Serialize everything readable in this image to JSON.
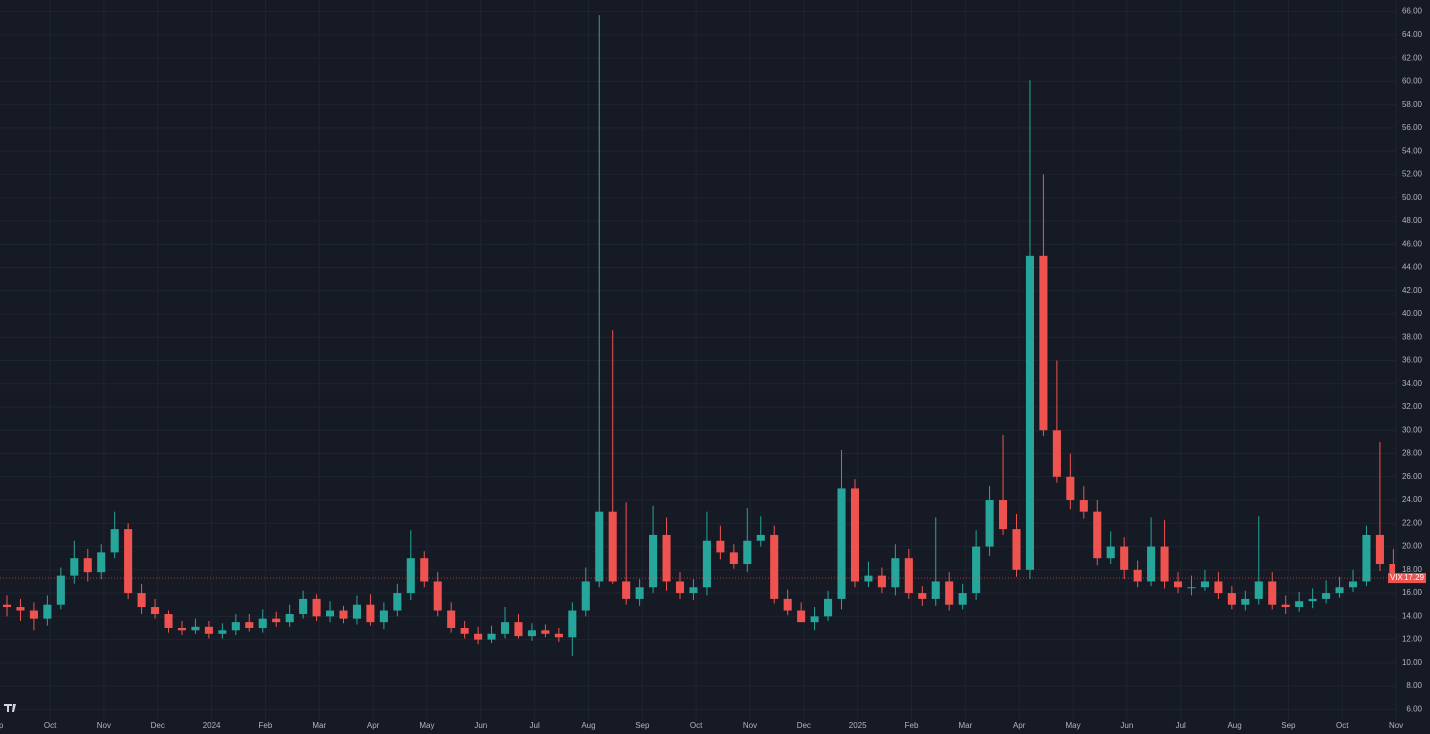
{
  "chart_data": {
    "type": "candlestick",
    "tag": "VIX",
    "last_value": {
      "value": 17.29,
      "label": "17.29"
    },
    "up_color": "#26a69a",
    "down_color": "#ef5350",
    "grid": true,
    "xlim": [
      0.07,
      25.98
    ],
    "xticks": [
      {
        "value": 0,
        "label": "Sep"
      },
      {
        "value": 1,
        "label": "Oct"
      },
      {
        "value": 2,
        "label": "Nov"
      },
      {
        "value": 3,
        "label": "Dec"
      },
      {
        "value": 4,
        "label": "2024"
      },
      {
        "value": 5,
        "label": "Feb"
      },
      {
        "value": 6,
        "label": "Mar"
      },
      {
        "value": 7,
        "label": "Apr"
      },
      {
        "value": 8,
        "label": "May"
      },
      {
        "value": 9,
        "label": "Jun"
      },
      {
        "value": 10,
        "label": "Jul"
      },
      {
        "value": 11,
        "label": "Aug"
      },
      {
        "value": 12,
        "label": "Sep"
      },
      {
        "value": 13,
        "label": "Oct"
      },
      {
        "value": 14,
        "label": "Nov"
      },
      {
        "value": 15,
        "label": "Dec"
      },
      {
        "value": 16,
        "label": "2025"
      },
      {
        "value": 17,
        "label": "Feb"
      },
      {
        "value": 18,
        "label": "Mar"
      },
      {
        "value": 19,
        "label": "Apr"
      },
      {
        "value": 20,
        "label": "May"
      },
      {
        "value": 21,
        "label": "Jun"
      },
      {
        "value": 22,
        "label": "Jul"
      },
      {
        "value": 23,
        "label": "Aug"
      },
      {
        "value": 24,
        "label": "Sep"
      },
      {
        "value": 25,
        "label": "Oct"
      },
      {
        "value": 26,
        "label": "Nov"
      }
    ],
    "ylim": [
      5,
      67
    ],
    "yticks": [
      {
        "value": 6,
        "label": "6.00"
      },
      {
        "value": 8,
        "label": "8.00"
      },
      {
        "value": 10,
        "label": "10.00"
      },
      {
        "value": 12,
        "label": "12.00"
      },
      {
        "value": 14,
        "label": "14.00"
      },
      {
        "value": 16,
        "label": "16.00"
      },
      {
        "value": 18,
        "label": "18.00"
      },
      {
        "value": 20,
        "label": "20.00"
      },
      {
        "value": 22,
        "label": "22.00"
      },
      {
        "value": 24,
        "label": "24.00"
      },
      {
        "value": 26,
        "label": "26.00"
      },
      {
        "value": 28,
        "label": "28.00"
      },
      {
        "value": 30,
        "label": "30.00"
      },
      {
        "value": 32,
        "label": "32.00"
      },
      {
        "value": 34,
        "label": "34.00"
      },
      {
        "value": 36,
        "label": "36.00"
      },
      {
        "value": 38,
        "label": "38.00"
      },
      {
        "value": 40,
        "label": "40.00"
      },
      {
        "value": 42,
        "label": "42.00"
      },
      {
        "value": 44,
        "label": "44.00"
      },
      {
        "value": 46,
        "label": "46.00"
      },
      {
        "value": 48,
        "label": "48.00"
      },
      {
        "value": 50,
        "label": "50.00"
      },
      {
        "value": 52,
        "label": "52.00"
      },
      {
        "value": 54,
        "label": "54.00"
      },
      {
        "value": 56,
        "label": "56.00"
      },
      {
        "value": 58,
        "label": "58.00"
      },
      {
        "value": 60,
        "label": "60.00"
      },
      {
        "value": 62,
        "label": "62.00"
      },
      {
        "value": 64,
        "label": "64.00"
      },
      {
        "value": 66,
        "label": "66.00"
      }
    ],
    "x": [
      0.2,
      0.45,
      0.7,
      0.95,
      1.2,
      1.45,
      1.7,
      1.95,
      2.2,
      2.45,
      2.7,
      2.95,
      3.2,
      3.45,
      3.7,
      3.95,
      4.2,
      4.45,
      4.7,
      4.95,
      5.2,
      5.45,
      5.7,
      5.95,
      6.2,
      6.45,
      6.7,
      6.95,
      7.2,
      7.45,
      7.7,
      7.95,
      8.2,
      8.45,
      8.7,
      8.95,
      9.2,
      9.45,
      9.7,
      9.95,
      10.2,
      10.45,
      10.7,
      10.95,
      11.2,
      11.45,
      11.7,
      11.95,
      12.2,
      12.45,
      12.7,
      12.95,
      13.2,
      13.45,
      13.7,
      13.95,
      14.2,
      14.45,
      14.7,
      14.95,
      15.2,
      15.45,
      15.7,
      15.95,
      16.2,
      16.45,
      16.7,
      16.95,
      17.2,
      17.45,
      17.7,
      17.95,
      18.2,
      18.45,
      18.7,
      18.95,
      19.2,
      19.45,
      19.7,
      19.95,
      20.2,
      20.45,
      20.7,
      20.95,
      21.2,
      21.45,
      21.7,
      21.95,
      22.2,
      22.45,
      22.7,
      22.95,
      23.2,
      23.45,
      23.7,
      23.95,
      24.2,
      24.45,
      24.7,
      24.95,
      25.2,
      25.45,
      25.7,
      25.95
    ],
    "open": [
      15,
      14.8,
      14.5,
      13.8,
      15,
      17.5,
      19,
      17.8,
      19.5,
      21.5,
      16,
      14.8,
      14.2,
      13,
      12.8,
      13.1,
      12.5,
      12.8,
      13.5,
      13,
      13.8,
      13.5,
      14.2,
      15.5,
      14,
      14.5,
      13.8,
      15,
      13.5,
      14.5,
      16,
      19,
      17,
      14.5,
      13,
      12.5,
      12,
      12.5,
      13.5,
      12.3,
      12.8,
      12.5,
      12.2,
      14.5,
      17,
      23,
      17,
      15.5,
      16.5,
      21,
      17,
      16,
      16.5,
      20.5,
      19.5,
      18.5,
      20.5,
      21,
      15.5,
      14.5,
      13.5,
      14,
      15.5,
      25,
      17,
      17.5,
      16.5,
      19,
      16,
      15.5,
      17,
      15,
      16,
      20,
      24,
      21.5,
      18,
      45,
      30,
      26,
      24,
      23,
      19,
      20,
      18,
      17,
      20,
      17,
      16.5,
      16.5,
      17,
      16,
      15,
      15.5,
      17,
      15,
      14.8,
      15.3,
      15.5,
      16,
      16.5,
      17,
      21,
      18.5
    ],
    "high": [
      15.8,
      15.5,
      15.2,
      15.8,
      18.2,
      20.5,
      19.8,
      20.2,
      23,
      22,
      16.8,
      15.5,
      14.5,
      13.6,
      13.8,
      13.6,
      13.4,
      14.2,
      14.2,
      14.6,
      14.4,
      15,
      16.2,
      15.9,
      15.3,
      14.9,
      15.8,
      15.9,
      15.2,
      16.8,
      21.4,
      19.6,
      17.8,
      15.2,
      13.6,
      13.1,
      13.2,
      14.8,
      14.2,
      13.4,
      13.3,
      13,
      15.2,
      18.2,
      65.7,
      38.6,
      23.8,
      17.2,
      23.5,
      22.5,
      17.8,
      17.2,
      23,
      21.8,
      20.2,
      23.3,
      22.6,
      21.8,
      16.3,
      15.2,
      14.8,
      16.2,
      28.3,
      25.8,
      18.7,
      18.2,
      20.2,
      19.8,
      16.6,
      22.5,
      17.8,
      16.8,
      21.4,
      25.2,
      29.6,
      22.8,
      60.1,
      52,
      36,
      28,
      25.2,
      24,
      21.3,
      20.8,
      18.8,
      22.5,
      22.3,
      17.8,
      17.5,
      18,
      17.8,
      16.6,
      16.2,
      22.6,
      17.8,
      15.8,
      16.1,
      16.4,
      17.1,
      17.4,
      18,
      21.8,
      28.99,
      19.8
    ],
    "low": [
      14,
      13.6,
      12.8,
      13.2,
      14.6,
      16.8,
      17,
      17.2,
      19,
      15.5,
      14.2,
      13.8,
      12.6,
      12.4,
      12.5,
      12.1,
      12.1,
      12.4,
      12.7,
      12.6,
      13.1,
      13.1,
      13.8,
      13.6,
      13.5,
      13.4,
      13.3,
      13.2,
      12.9,
      14,
      15.4,
      16.5,
      14,
      12.6,
      12.1,
      11.6,
      11.7,
      12.1,
      12.1,
      11.9,
      12.2,
      11.8,
      10.6,
      14,
      16.5,
      16.8,
      15,
      14.9,
      16,
      16.2,
      15.5,
      15.4,
      15.8,
      18.9,
      18.1,
      17.8,
      20,
      15.1,
      14.1,
      13.5,
      12.8,
      13.6,
      14.6,
      16.5,
      16.5,
      16,
      15.8,
      15.5,
      14.9,
      14.9,
      14.5,
      14.6,
      15.4,
      19.2,
      21,
      17.4,
      17.2,
      29.5,
      25.5,
      23.2,
      22.4,
      18.4,
      18.5,
      17.2,
      16.5,
      16.6,
      16.4,
      16,
      15.8,
      16.2,
      15.5,
      14.6,
      14.5,
      15,
      14.6,
      14.2,
      14.4,
      14.7,
      15.1,
      15.6,
      16.1,
      16.6,
      17.9,
      17
    ],
    "close": [
      14.8,
      14.5,
      13.8,
      15,
      17.5,
      19,
      17.8,
      19.5,
      21.5,
      16,
      14.8,
      14.2,
      13,
      12.8,
      13.1,
      12.5,
      12.8,
      13.5,
      13,
      13.8,
      13.5,
      14.2,
      15.5,
      14,
      14.5,
      13.8,
      15,
      13.5,
      14.5,
      16,
      19,
      17,
      14.5,
      13,
      12.5,
      12,
      12.5,
      13.5,
      12.3,
      12.8,
      12.5,
      12.2,
      14.5,
      17,
      23,
      17,
      15.5,
      16.5,
      21,
      17,
      16,
      16.5,
      20.5,
      19.5,
      18.5,
      20.5,
      21,
      15.5,
      14.5,
      13.5,
      14,
      15.5,
      25,
      17,
      17.5,
      16.5,
      19,
      16,
      15.5,
      17,
      15,
      16,
      20,
      24,
      21.5,
      18,
      45,
      30,
      26,
      24,
      23,
      19,
      20,
      18,
      17,
      20,
      17,
      16.5,
      16.5,
      17,
      16,
      15,
      15.5,
      17,
      15,
      14.8,
      15.3,
      15.5,
      16,
      16.5,
      17,
      21,
      18.5,
      17.29
    ]
  }
}
